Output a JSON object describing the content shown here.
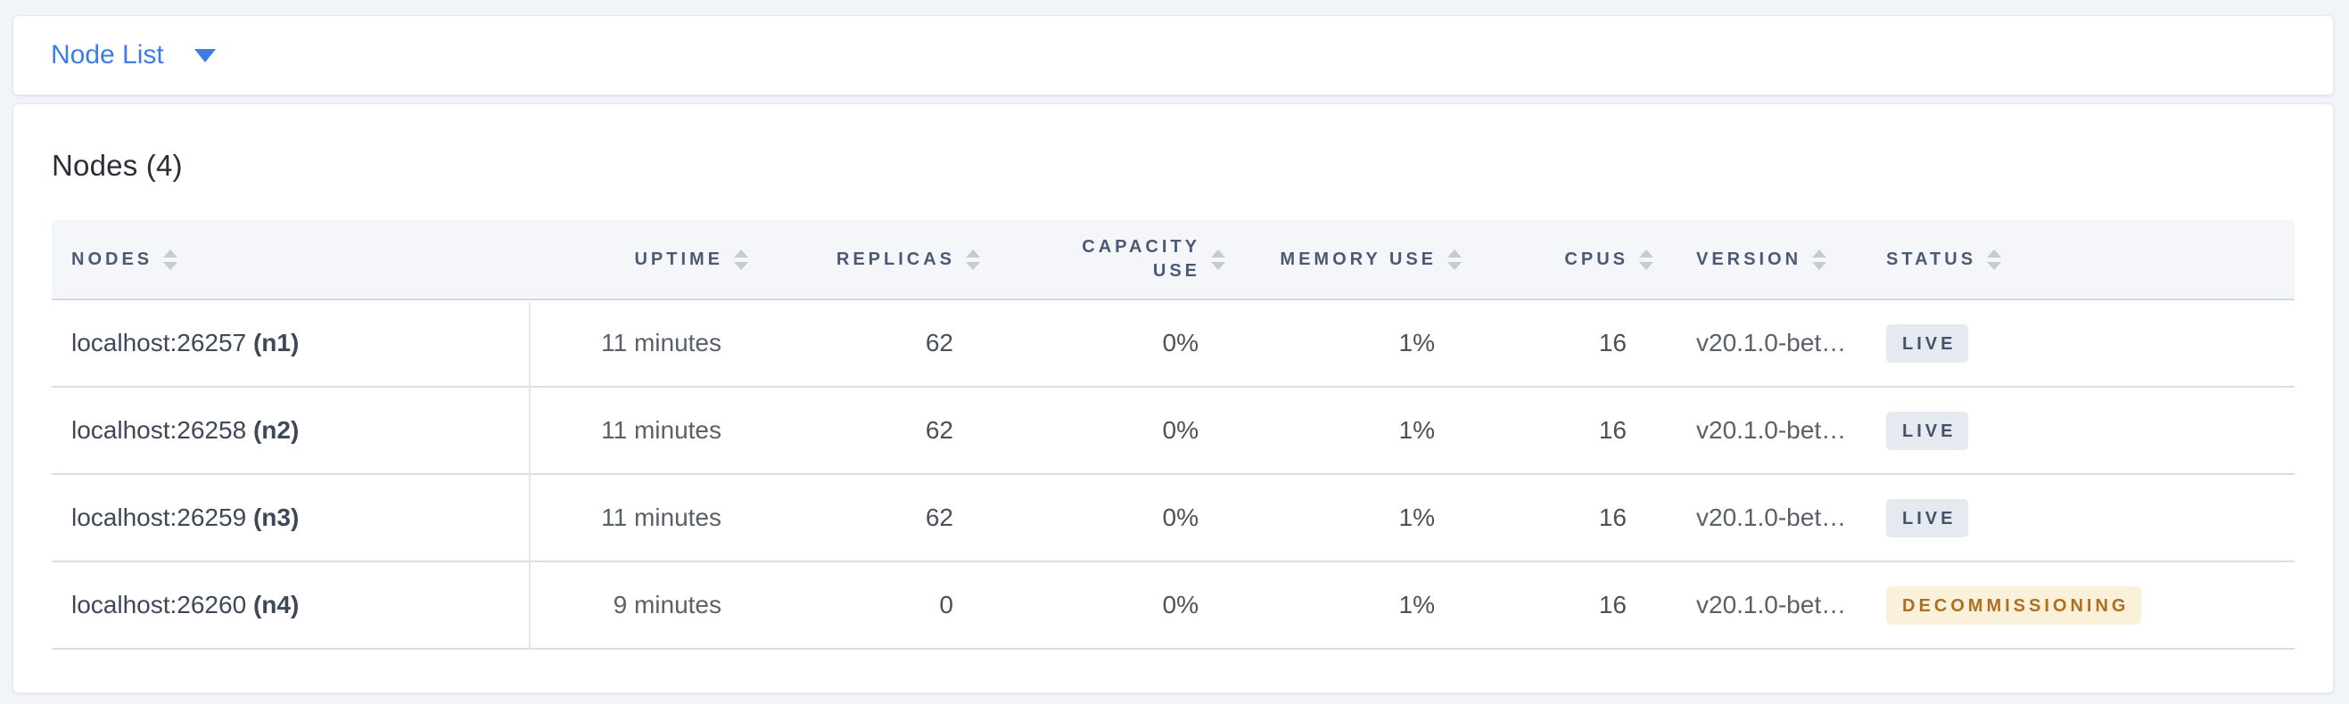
{
  "view_selector": {
    "label": "Node List"
  },
  "main": {
    "title": "Nodes (4)",
    "table": {
      "columns": [
        {
          "key": "nodes",
          "label": "NODES",
          "align": "left"
        },
        {
          "key": "uptime",
          "label": "UPTIME",
          "align": "right"
        },
        {
          "key": "replicas",
          "label": "REPLICAS",
          "align": "right"
        },
        {
          "key": "capacity_use",
          "label": "CAPACITY USE",
          "align": "right",
          "wrap": true
        },
        {
          "key": "memory_use",
          "label": "MEMORY USE",
          "align": "right"
        },
        {
          "key": "cpus",
          "label": "CPUS",
          "align": "right"
        },
        {
          "key": "version",
          "label": "VERSION",
          "align": "left"
        },
        {
          "key": "status",
          "label": "STATUS",
          "align": "left"
        }
      ],
      "rows": [
        {
          "address": "localhost:26257",
          "node_id": "(n1)",
          "uptime": "11 minutes",
          "replicas": "62",
          "capacity_use": "0%",
          "memory_use": "1%",
          "cpus": "16",
          "version": "v20.1.0-bet…",
          "status": "LIVE",
          "status_type": "live"
        },
        {
          "address": "localhost:26258",
          "node_id": "(n2)",
          "uptime": "11 minutes",
          "replicas": "62",
          "capacity_use": "0%",
          "memory_use": "1%",
          "cpus": "16",
          "version": "v20.1.0-bet…",
          "status": "LIVE",
          "status_type": "live"
        },
        {
          "address": "localhost:26259",
          "node_id": "(n3)",
          "uptime": "11 minutes",
          "replicas": "62",
          "capacity_use": "0%",
          "memory_use": "1%",
          "cpus": "16",
          "version": "v20.1.0-bet…",
          "status": "LIVE",
          "status_type": "live"
        },
        {
          "address": "localhost:26260",
          "node_id": "(n4)",
          "uptime": "9 minutes",
          "replicas": "0",
          "capacity_use": "0%",
          "memory_use": "1%",
          "cpus": "16",
          "version": "v20.1.0-bet…",
          "status": "DECOMMISSIONING",
          "status_type": "decommissioning"
        }
      ]
    }
  },
  "colors": {
    "accent_blue": "#3d7de3",
    "live_badge_bg": "#e5e9f0",
    "live_badge_text": "#45516b",
    "decommissioning_badge_bg": "#fbf1da",
    "decommissioning_badge_text": "#b06e1f"
  }
}
